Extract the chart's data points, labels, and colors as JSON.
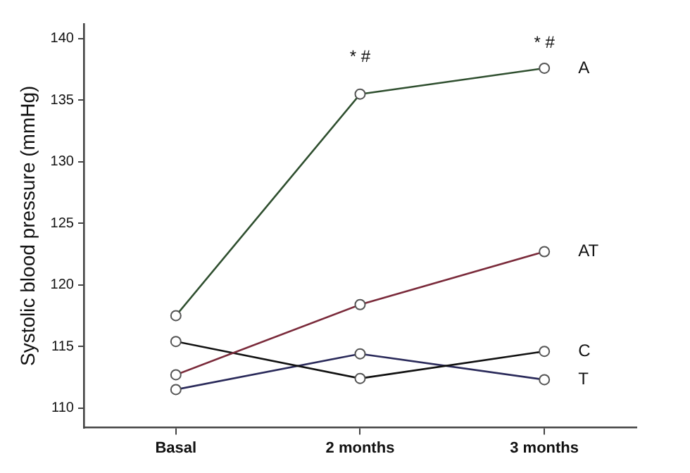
{
  "chart_data": {
    "type": "line",
    "ylabel": "Systolic blood pressure (mmHg)",
    "categories": [
      "Basal",
      "2 months",
      "3 months"
    ],
    "series": [
      {
        "name": "A",
        "color": "#2f4f2f",
        "values": [
          117.5,
          135.5,
          137.6
        ]
      },
      {
        "name": "AT",
        "color": "#7a2a3a",
        "values": [
          112.7,
          118.4,
          122.7
        ]
      },
      {
        "name": "C",
        "color": "#111111",
        "values": [
          115.4,
          112.4,
          114.6
        ]
      },
      {
        "name": "T",
        "color": "#2a2a5a",
        "values": [
          111.5,
          114.4,
          112.3
        ]
      }
    ],
    "ylim": [
      108.4,
      141.2
    ],
    "yticks": [
      110,
      115,
      120,
      125,
      130,
      135,
      140
    ],
    "annotations": [
      "* #",
      "* #"
    ],
    "grid": false,
    "legend": false,
    "marker": "circle",
    "line_style": "solid"
  }
}
